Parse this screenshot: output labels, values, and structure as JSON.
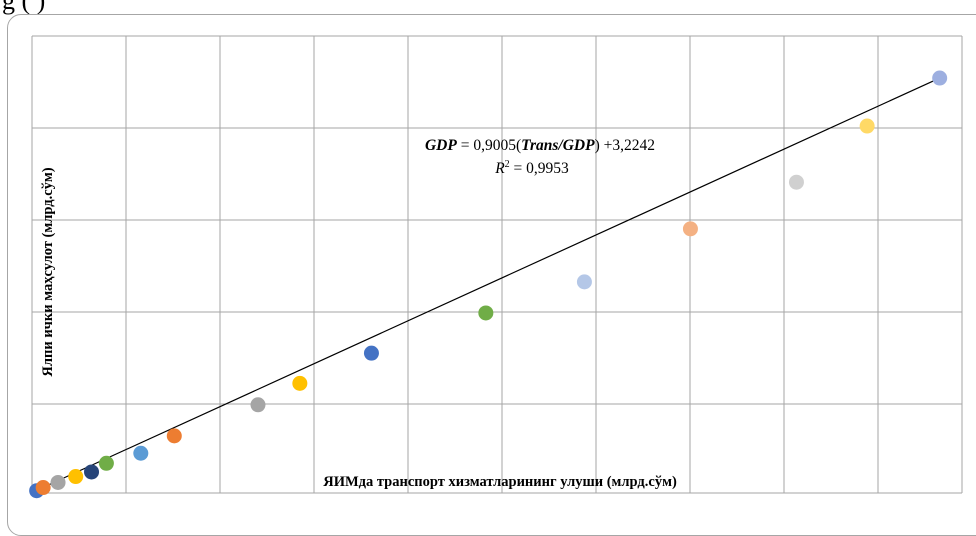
{
  "top_text": "g                              (     )",
  "chart_data": {
    "type": "scatter",
    "xlabel": "ЯИМда транспорт хизматларининг улуши (млрд.сўм)",
    "ylabel": "Ялпи ички маҳсулот (млрд.сўм)",
    "xlim": [
      0,
      100
    ],
    "ylim": [
      0,
      100
    ],
    "grid": true,
    "points": [
      {
        "x": 0.5,
        "y": 0.5,
        "color": "#4472c4"
      },
      {
        "x": 1.2,
        "y": 1.2,
        "color": "#ed7d31"
      },
      {
        "x": 2.8,
        "y": 2.3,
        "color": "#a5a5a5"
      },
      {
        "x": 4.7,
        "y": 3.6,
        "color": "#ffc000"
      },
      {
        "x": 6.4,
        "y": 4.6,
        "color": "#264478"
      },
      {
        "x": 8.0,
        "y": 6.5,
        "color": "#70ad47"
      },
      {
        "x": 11.7,
        "y": 8.7,
        "color": "#5b9bd5"
      },
      {
        "x": 15.3,
        "y": 12.5,
        "color": "#ed7d31"
      },
      {
        "x": 24.3,
        "y": 19.3,
        "color": "#a5a5a5"
      },
      {
        "x": 28.8,
        "y": 24.0,
        "color": "#ffc000"
      },
      {
        "x": 36.5,
        "y": 30.6,
        "color": "#4472c4"
      },
      {
        "x": 48.8,
        "y": 39.4,
        "color": "#70ad47"
      },
      {
        "x": 59.4,
        "y": 46.2,
        "color": "#b4c7e7"
      },
      {
        "x": 70.8,
        "y": 57.8,
        "color": "#f4b183"
      },
      {
        "x": 82.2,
        "y": 68.0,
        "color": "#d0d0d0"
      },
      {
        "x": 89.8,
        "y": 80.3,
        "color": "#ffd966"
      },
      {
        "x": 97.6,
        "y": 90.8,
        "color": "#9dafe0"
      }
    ],
    "trendline": {
      "points": [
        [
          0.2,
          0.3
        ],
        [
          97.6,
          90.8
        ]
      ],
      "color": "#000000",
      "equation": {
        "y_var": "GDP",
        "mid": " = 0,9005(",
        "x_var": "Trans/GDP",
        "tail": ") +3,2242"
      },
      "r2": {
        "label": "R",
        "sup": "2",
        "value": " = 0,9953"
      }
    }
  }
}
